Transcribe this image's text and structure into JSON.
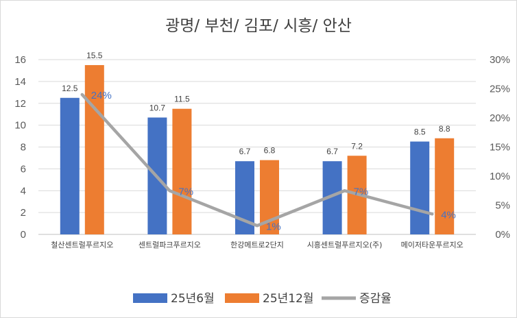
{
  "chart_data": {
    "type": "bar",
    "title": "광명/ 부천/ 김포/ 시흥/ 안산",
    "categories": [
      "철산센트럴푸르지오",
      "센트럴파크푸르지오",
      "한강메트로2단지",
      "시흥센트럴푸르지오(주)",
      "메이저타운푸르지오"
    ],
    "series": [
      {
        "name": "25년6월",
        "kind": "bar",
        "axis": "left",
        "color": "#4472c4",
        "values": [
          12.5,
          10.7,
          6.7,
          6.7,
          8.5
        ],
        "labels": [
          "12.5",
          "10.7",
          "6.7",
          "6.7",
          "8.5"
        ]
      },
      {
        "name": "25년12월",
        "kind": "bar",
        "axis": "left",
        "color": "#ed7d31",
        "values": [
          15.5,
          11.5,
          6.8,
          7.2,
          8.8
        ],
        "labels": [
          "15.5",
          "11.5",
          "6.8",
          "7.2",
          "8.8"
        ]
      },
      {
        "name": "증감율",
        "kind": "line",
        "axis": "right",
        "color": "#a5a5a5",
        "values": [
          24,
          7.5,
          1.5,
          7.5,
          3.5
        ],
        "labels": [
          "24%",
          "7%",
          "1%",
          "7%",
          "4%"
        ]
      }
    ],
    "y_left": {
      "min": 0,
      "max": 16,
      "step": 2,
      "ticks": [
        "0",
        "2",
        "4",
        "6",
        "8",
        "10",
        "12",
        "14",
        "16"
      ]
    },
    "y_right": {
      "min": 0,
      "max": 30,
      "step": 5,
      "ticks": [
        "0%",
        "5%",
        "10%",
        "15%",
        "20%",
        "25%",
        "30%"
      ]
    },
    "grid": true,
    "legend_position": "bottom"
  }
}
